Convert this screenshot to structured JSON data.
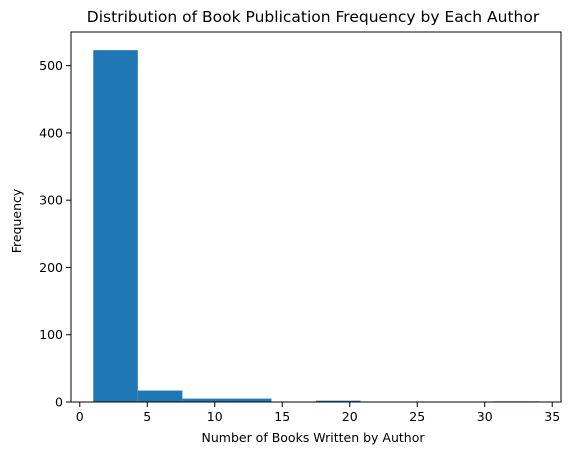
{
  "chart_data": {
    "type": "bar",
    "title": "Distribution of Book Publication Frequency by Each Author",
    "xlabel": "Number of Books Written by Author",
    "ylabel": "Frequency",
    "bins": [
      {
        "start": 1.0,
        "end": 4.3,
        "count": 523
      },
      {
        "start": 4.3,
        "end": 7.6,
        "count": 17
      },
      {
        "start": 7.6,
        "end": 10.9,
        "count": 5
      },
      {
        "start": 10.9,
        "end": 14.2,
        "count": 5
      },
      {
        "start": 14.2,
        "end": 17.5,
        "count": 0
      },
      {
        "start": 17.5,
        "end": 20.8,
        "count": 2
      },
      {
        "start": 20.8,
        "end": 24.1,
        "count": 0
      },
      {
        "start": 24.1,
        "end": 27.4,
        "count": 0
      },
      {
        "start": 27.4,
        "end": 30.7,
        "count": 0
      },
      {
        "start": 30.7,
        "end": 34.0,
        "count": 1
      }
    ],
    "xlim": [
      -0.65,
      35.65
    ],
    "ylim": [
      0,
      550
    ],
    "xticks": [
      0,
      5,
      10,
      15,
      20,
      25,
      30,
      35
    ],
    "yticks": [
      0,
      100,
      200,
      300,
      400,
      500
    ],
    "grid": false,
    "bar_color": "#1f77b4"
  }
}
